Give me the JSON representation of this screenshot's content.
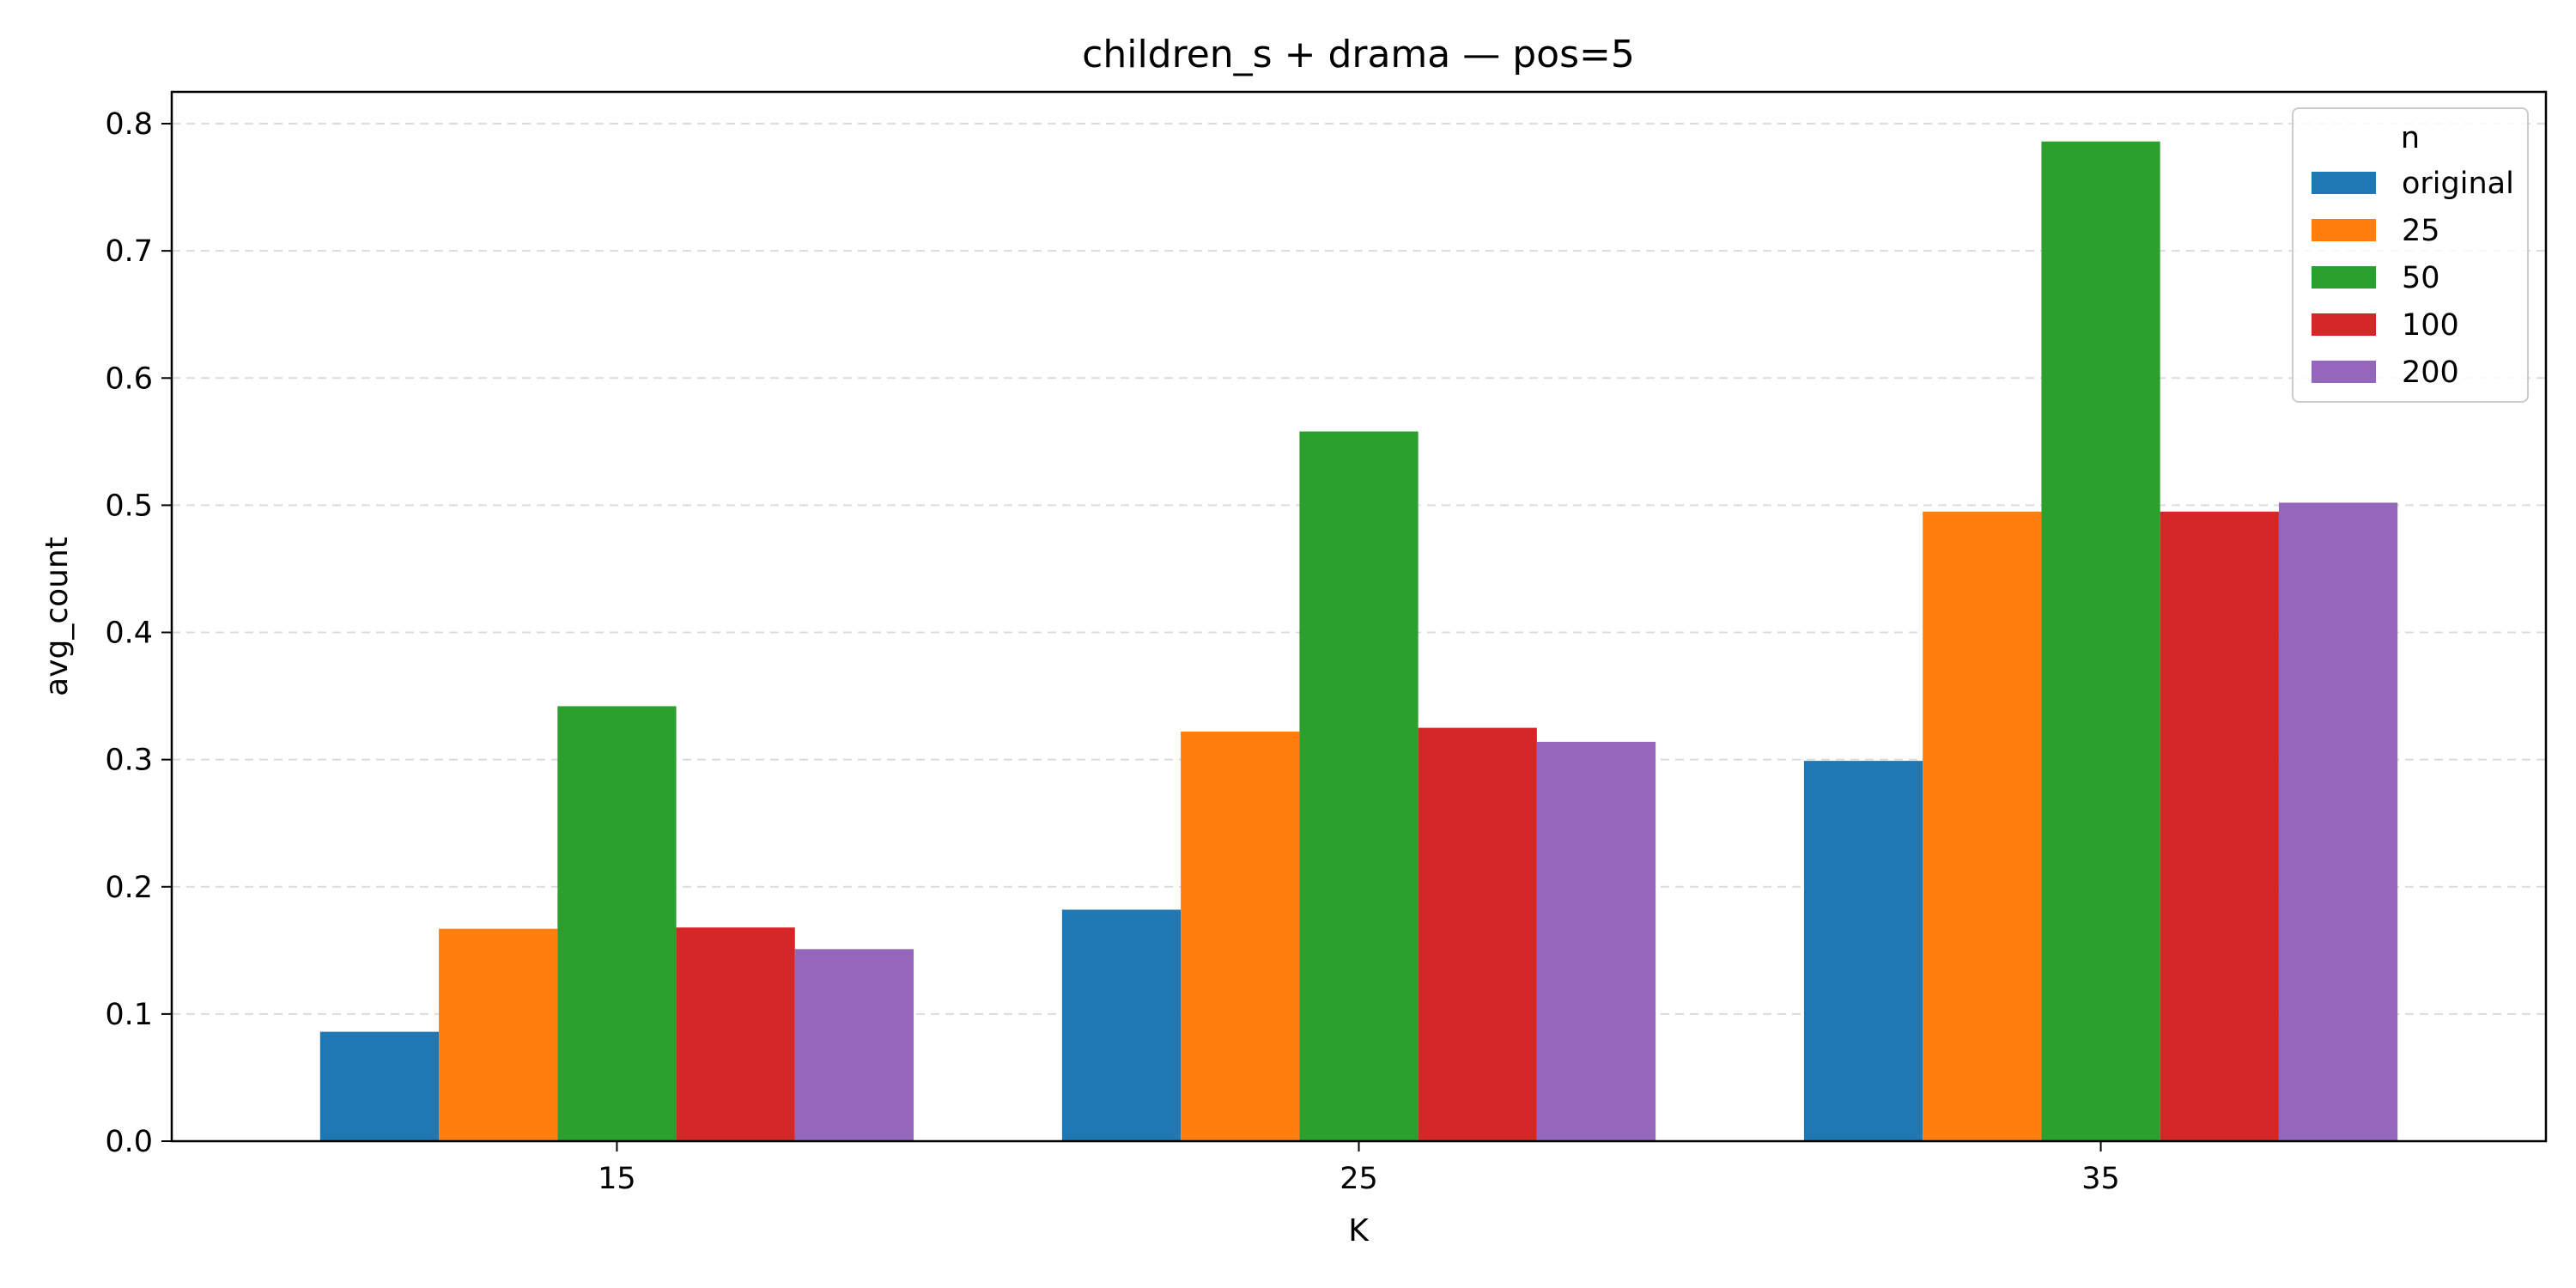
{
  "chart_data": {
    "type": "bar",
    "title": "children_s + drama — pos=5",
    "xlabel": "K",
    "ylabel": "avg_count",
    "categories": [
      "15",
      "25",
      "35"
    ],
    "ylim": [
      0.0,
      0.825
    ],
    "yticks": [
      "0.0",
      "0.1",
      "0.2",
      "0.3",
      "0.4",
      "0.5",
      "0.6",
      "0.7",
      "0.8"
    ],
    "grid": "y-dashed",
    "legend": {
      "title": "n",
      "placement": "top-right"
    },
    "series": [
      {
        "name": "original",
        "color": "#1f77b4",
        "values": [
          0.086,
          0.182,
          0.299
        ]
      },
      {
        "name": "25",
        "color": "#ff7f0e",
        "values": [
          0.167,
          0.322,
          0.495
        ]
      },
      {
        "name": "50",
        "color": "#2ca02c",
        "values": [
          0.342,
          0.558,
          0.786
        ]
      },
      {
        "name": "100",
        "color": "#d62728",
        "values": [
          0.168,
          0.325,
          0.495
        ]
      },
      {
        "name": "200",
        "color": "#9467bd",
        "values": [
          0.151,
          0.314,
          0.502
        ]
      }
    ]
  }
}
